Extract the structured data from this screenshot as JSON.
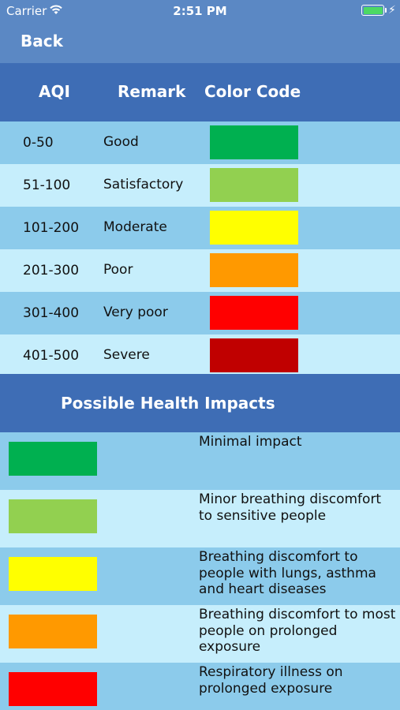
{
  "status": {
    "carrier": "Carrier",
    "time": "2:51 PM",
    "charge_glyph": "⚡"
  },
  "nav": {
    "back_label": "Back"
  },
  "table": {
    "headers": {
      "aqi": "AQI",
      "remark": "Remark",
      "color_code": "Color Code"
    },
    "rows": [
      {
        "range": "0-50",
        "remark": "Good",
        "color": "#00b050"
      },
      {
        "range": "51-100",
        "remark": "Satisfactory",
        "color": "#92d050"
      },
      {
        "range": "101-200",
        "remark": "Moderate",
        "color": "#ffff00"
      },
      {
        "range": "201-300",
        "remark": "Poor",
        "color": "#ff9900"
      },
      {
        "range": "301-400",
        "remark": "Very poor",
        "color": "#ff0000"
      },
      {
        "range": "401-500",
        "remark": "Severe",
        "color": "#c00000"
      }
    ]
  },
  "impacts": {
    "title": "Possible Health Impacts",
    "rows": [
      {
        "color": "#00b050",
        "text": "Minimal impact"
      },
      {
        "color": "#92d050",
        "text": "Minor breathing discomfort to sensitive people"
      },
      {
        "color": "#ffff00",
        "text": "Breathing discomfort to people with lungs, asthma and heart diseases"
      },
      {
        "color": "#ff9900",
        "text": "Breathing discomfort to most people on prolonged exposure"
      },
      {
        "color": "#ff0000",
        "text": "Respiratory illness on prolonged exposure"
      }
    ]
  },
  "colors": {
    "nav_background": "#5b88c4",
    "header_background": "#3e6db5",
    "row_dark": "#8ccbeb",
    "row_light": "#c6eefc"
  }
}
